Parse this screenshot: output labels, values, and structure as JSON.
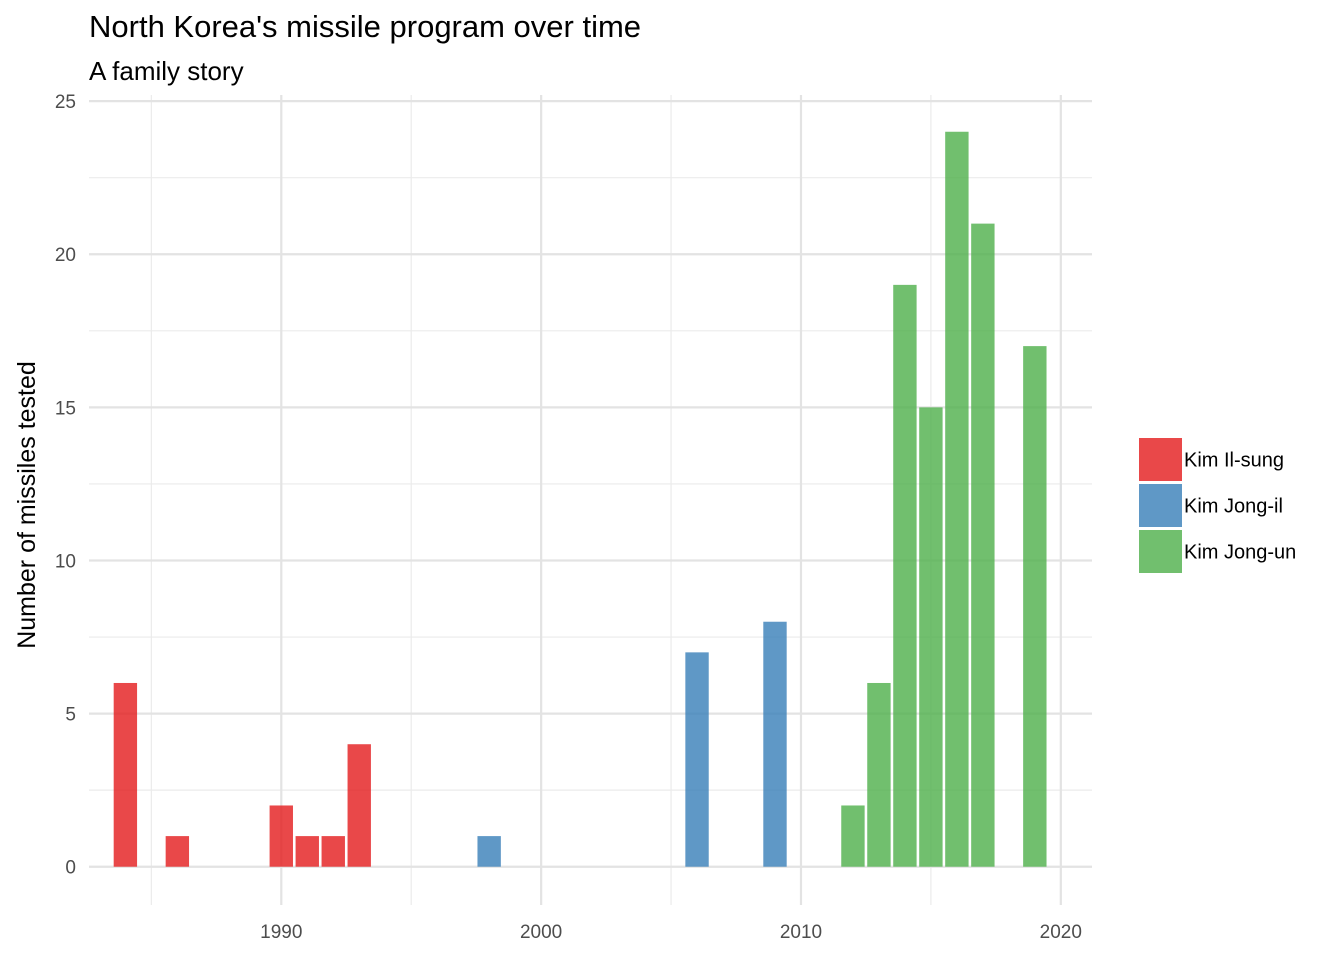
{
  "chart_data": {
    "type": "bar",
    "title": "North Korea's missile program over time",
    "subtitle": "A family story",
    "xlabel": "",
    "ylabel": "Number of missiles tested",
    "xlim": [
      1982.6,
      2021.2
    ],
    "ylim": [
      -1.25,
      25.2
    ],
    "x_ticks": [
      1990,
      2000,
      2010,
      2020
    ],
    "y_ticks": [
      0,
      5,
      10,
      15,
      20,
      25
    ],
    "grid": true,
    "legend_position": "right",
    "series": [
      {
        "name": "Kim Il-sung",
        "color": "#E41A1C",
        "points": [
          {
            "x": 1984,
            "y": 6
          },
          {
            "x": 1986,
            "y": 1
          },
          {
            "x": 1990,
            "y": 2
          },
          {
            "x": 1991,
            "y": 1
          },
          {
            "x": 1992,
            "y": 1
          },
          {
            "x": 1993,
            "y": 4
          }
        ]
      },
      {
        "name": "Kim Jong-il",
        "color": "#377EB8",
        "points": [
          {
            "x": 1998,
            "y": 1
          },
          {
            "x": 2006,
            "y": 7
          },
          {
            "x": 2009,
            "y": 8
          }
        ]
      },
      {
        "name": "Kim Jong-un",
        "color": "#4DAF4A",
        "points": [
          {
            "x": 2012,
            "y": 2
          },
          {
            "x": 2013,
            "y": 6
          },
          {
            "x": 2014,
            "y": 19
          },
          {
            "x": 2015,
            "y": 15
          },
          {
            "x": 2016,
            "y": 24
          },
          {
            "x": 2017,
            "y": 21
          },
          {
            "x": 2019,
            "y": 17
          }
        ]
      }
    ]
  }
}
